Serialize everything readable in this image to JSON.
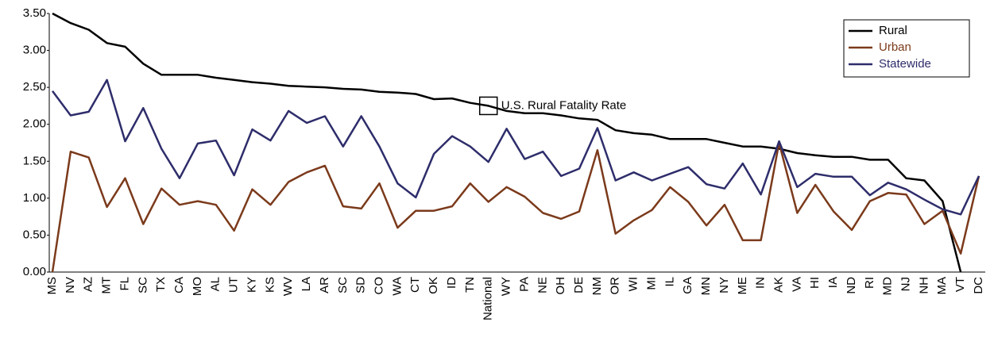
{
  "chart_data": {
    "type": "line",
    "categories": [
      "MS",
      "NV",
      "AZ",
      "MT",
      "FL",
      "SC",
      "TX",
      "CA",
      "MO",
      "AL",
      "UT",
      "KY",
      "KS",
      "WV",
      "LA",
      "AR",
      "SC",
      "SD",
      "CO",
      "WA",
      "CT",
      "OK",
      "ID",
      "TN",
      "National",
      "WY",
      "PA",
      "NE",
      "OH",
      "DE",
      "NM",
      "OR",
      "WI",
      "MI",
      "IL",
      "GA",
      "MN",
      "NY",
      "ME",
      "IN",
      "AK",
      "VA",
      "HI",
      "IA",
      "ND",
      "RI",
      "MD",
      "NJ",
      "NH",
      "MA",
      "VT",
      "DC"
    ],
    "series": [
      {
        "name": "Rural",
        "color": "#000000",
        "values": [
          3.5,
          3.37,
          3.28,
          3.1,
          3.05,
          2.82,
          2.67,
          2.67,
          2.67,
          2.63,
          2.6,
          2.57,
          2.55,
          2.52,
          2.51,
          2.5,
          2.48,
          2.47,
          2.44,
          2.43,
          2.41,
          2.34,
          2.35,
          2.29,
          2.25,
          2.18,
          2.15,
          2.15,
          2.12,
          2.08,
          2.06,
          1.92,
          1.88,
          1.86,
          1.8,
          1.8,
          1.8,
          1.75,
          1.7,
          1.7,
          1.67,
          1.61,
          1.58,
          1.56,
          1.56,
          1.52,
          1.52,
          1.27,
          1.24,
          0.96,
          0,
          null
        ]
      },
      {
        "name": "Urban",
        "color": "#7b3a1b",
        "values": [
          0.0,
          1.63,
          1.55,
          0.88,
          1.27,
          0.65,
          1.13,
          0.91,
          0.96,
          0.91,
          0.56,
          1.12,
          0.91,
          1.22,
          1.35,
          1.44,
          0.89,
          0.86,
          1.2,
          0.6,
          0.83,
          0.83,
          0.89,
          1.2,
          0.95,
          1.15,
          1.02,
          0.8,
          0.72,
          0.82,
          1.65,
          0.52,
          0.7,
          0.84,
          1.15,
          0.95,
          0.63,
          0.91,
          0.43,
          0.43,
          1.75,
          0.8,
          1.18,
          0.82,
          0.57,
          0.96,
          1.07,
          1.05,
          0.65,
          0.83,
          0.25,
          1.3
        ]
      },
      {
        "name": "Statewide",
        "color": "#2e2d6b",
        "values": [
          2.45,
          2.12,
          2.17,
          2.6,
          1.77,
          2.22,
          1.67,
          1.27,
          1.74,
          1.78,
          1.31,
          1.93,
          1.78,
          2.18,
          2.02,
          2.11,
          1.7,
          2.11,
          1.7,
          1.2,
          1.01,
          1.6,
          1.84,
          1.7,
          1.49,
          1.94,
          1.53,
          1.63,
          1.3,
          1.4,
          1.95,
          1.24,
          1.35,
          1.24,
          1.33,
          1.42,
          1.19,
          1.13,
          1.47,
          1.05,
          1.77,
          1.15,
          1.33,
          1.29,
          1.29,
          1.04,
          1.21,
          1.12,
          0.98,
          0.85,
          0.78,
          1.3
        ]
      }
    ],
    "annotation": {
      "text": "U.S. Rural Fatality Rate",
      "category": 24,
      "value": 2.25
    },
    "ylim": [
      0,
      3.5
    ],
    "yticks": [
      {
        "value": 0,
        "label": "0.00"
      },
      {
        "value": 0.5,
        "label": "0.50"
      },
      {
        "value": 1,
        "label": "1.00"
      },
      {
        "value": 1.5,
        "label": "1.50"
      },
      {
        "value": 2,
        "label": "2.00"
      },
      {
        "value": 2.5,
        "label": "2.50"
      },
      {
        "value": 3,
        "label": "3.00"
      },
      {
        "value": 3.5,
        "label": "3.50"
      }
    ],
    "legend": "upper right",
    "grid": false
  }
}
